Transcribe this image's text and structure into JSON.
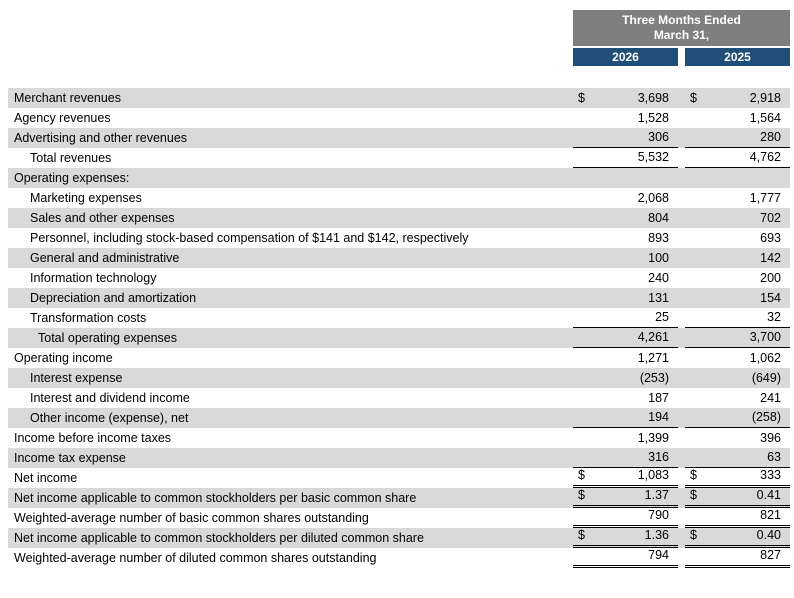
{
  "header": {
    "period_line1": "Three Months Ended",
    "period_line2": "March 31,",
    "years": [
      "2026",
      "2025"
    ]
  },
  "symbols": {
    "dollar": "$"
  },
  "colors": {
    "header_gray": "#7F7F7F",
    "header_blue": "#1F4E79",
    "row_shade": "#D9D9D9",
    "text": "#000000"
  },
  "rows": [
    {
      "label": "Merchant revenues",
      "indent": 0,
      "dollar": true,
      "v2026": "3,698",
      "v2025": "2,918",
      "shade": true,
      "border": "none"
    },
    {
      "label": "Agency revenues",
      "indent": 0,
      "dollar": false,
      "v2026": "1,528",
      "v2025": "1,564",
      "shade": false,
      "border": "none"
    },
    {
      "label": "Advertising and other revenues",
      "indent": 0,
      "dollar": false,
      "v2026": "306",
      "v2025": "280",
      "shade": true,
      "border": "single"
    },
    {
      "label": "Total revenues",
      "indent": 1,
      "dollar": false,
      "v2026": "5,532",
      "v2025": "4,762",
      "shade": false,
      "border": "single"
    },
    {
      "label": "Operating expenses:",
      "indent": 0,
      "dollar": false,
      "v2026": "",
      "v2025": "",
      "shade": true,
      "border": "none"
    },
    {
      "label": "Marketing expenses",
      "indent": 1,
      "dollar": false,
      "v2026": "2,068",
      "v2025": "1,777",
      "shade": false,
      "border": "none"
    },
    {
      "label": "Sales and other expenses",
      "indent": 1,
      "dollar": false,
      "v2026": "804",
      "v2025": "702",
      "shade": true,
      "border": "none"
    },
    {
      "label": "Personnel, including stock-based compensation of $141 and $142, respectively",
      "indent": 1,
      "dollar": false,
      "v2026": "893",
      "v2025": "693",
      "shade": false,
      "border": "none"
    },
    {
      "label": "General and administrative",
      "indent": 1,
      "dollar": false,
      "v2026": "100",
      "v2025": "142",
      "shade": true,
      "border": "none"
    },
    {
      "label": "Information technology",
      "indent": 1,
      "dollar": false,
      "v2026": "240",
      "v2025": "200",
      "shade": false,
      "border": "none"
    },
    {
      "label": "Depreciation and amortization",
      "indent": 1,
      "dollar": false,
      "v2026": "131",
      "v2025": "154",
      "shade": true,
      "border": "none"
    },
    {
      "label": "Transformation costs",
      "indent": 1,
      "dollar": false,
      "v2026": "25",
      "v2025": "32",
      "shade": false,
      "border": "single"
    },
    {
      "label": "Total operating expenses",
      "indent": 2,
      "dollar": false,
      "v2026": "4,261",
      "v2025": "3,700",
      "shade": true,
      "border": "single"
    },
    {
      "label": "Operating income",
      "indent": 0,
      "dollar": false,
      "v2026": "1,271",
      "v2025": "1,062",
      "shade": false,
      "border": "none"
    },
    {
      "label": "Interest expense",
      "indent": 1,
      "dollar": false,
      "v2026": "(253)",
      "v2025": "(649)",
      "shade": true,
      "border": "none"
    },
    {
      "label": "Interest and dividend income",
      "indent": 1,
      "dollar": false,
      "v2026": "187",
      "v2025": "241",
      "shade": false,
      "border": "none"
    },
    {
      "label": "Other income (expense), net",
      "indent": 1,
      "dollar": false,
      "v2026": "194",
      "v2025": "(258)",
      "shade": true,
      "border": "single"
    },
    {
      "label": "Income before income taxes",
      "indent": 0,
      "dollar": false,
      "v2026": "1,399",
      "v2025": "396",
      "shade": false,
      "border": "none"
    },
    {
      "label": "Income tax expense",
      "indent": 0,
      "dollar": false,
      "v2026": "316",
      "v2025": "63",
      "shade": true,
      "border": "single"
    },
    {
      "label": "Net income",
      "indent": 0,
      "dollar": true,
      "v2026": "1,083",
      "v2025": "333",
      "shade": false,
      "border": "double"
    },
    {
      "label": "Net income applicable to common stockholders per basic common share",
      "indent": 0,
      "dollar": true,
      "v2026": "1.37",
      "v2025": "0.41",
      "shade": true,
      "border": "double"
    },
    {
      "label": "Weighted-average number of basic common shares outstanding",
      "indent": 0,
      "dollar": false,
      "v2026": "790",
      "v2025": "821",
      "shade": false,
      "border": "double"
    },
    {
      "label": "Net income applicable to common stockholders per diluted common share",
      "indent": 0,
      "dollar": true,
      "v2026": "1.36",
      "v2025": "0.40",
      "shade": true,
      "border": "double"
    },
    {
      "label": "Weighted-average number of diluted common shares outstanding",
      "indent": 0,
      "dollar": false,
      "v2026": "794",
      "v2025": "827",
      "shade": false,
      "border": "double"
    }
  ]
}
